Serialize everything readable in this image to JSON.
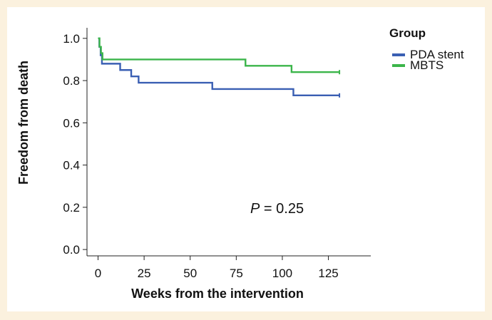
{
  "chart_data": {
    "type": "line",
    "subtype": "kaplan-meier-step",
    "xlabel": "Weeks from the intervention",
    "ylabel": "Freedom from death",
    "xlim": [
      -6,
      148
    ],
    "ylim": [
      -0.03,
      1.05
    ],
    "x_ticks": [
      0,
      25,
      50,
      75,
      100,
      125
    ],
    "x_tick_labels": [
      "0",
      "25",
      "50",
      "75",
      "100",
      "125"
    ],
    "y_ticks": [
      0.0,
      0.2,
      0.4,
      0.6,
      0.8,
      1.0
    ],
    "y_tick_labels": [
      "0.0",
      "0.2",
      "0.4",
      "0.6",
      "0.8",
      "1.0"
    ],
    "annotation": {
      "italic": "P",
      "rest": " = 0.25"
    },
    "legend": {
      "title": "Group",
      "position": "top-right"
    },
    "series": [
      {
        "name": "PDA stent",
        "color": "#3a5fb3",
        "x": [
          0,
          0.7,
          1.4,
          2.1,
          12,
          18,
          22,
          62,
          106,
          131
        ],
        "y": [
          1.0,
          0.96,
          0.92,
          0.88,
          0.85,
          0.82,
          0.79,
          0.76,
          0.73,
          0.73
        ],
        "censor_x": [
          131
        ]
      },
      {
        "name": "MBTS",
        "color": "#3bb54a",
        "x": [
          0,
          0.8,
          1.6,
          2.4,
          80,
          105,
          131
        ],
        "y": [
          1.0,
          0.96,
          0.93,
          0.9,
          0.87,
          0.84,
          0.84
        ],
        "censor_x": [
          131
        ]
      }
    ]
  }
}
